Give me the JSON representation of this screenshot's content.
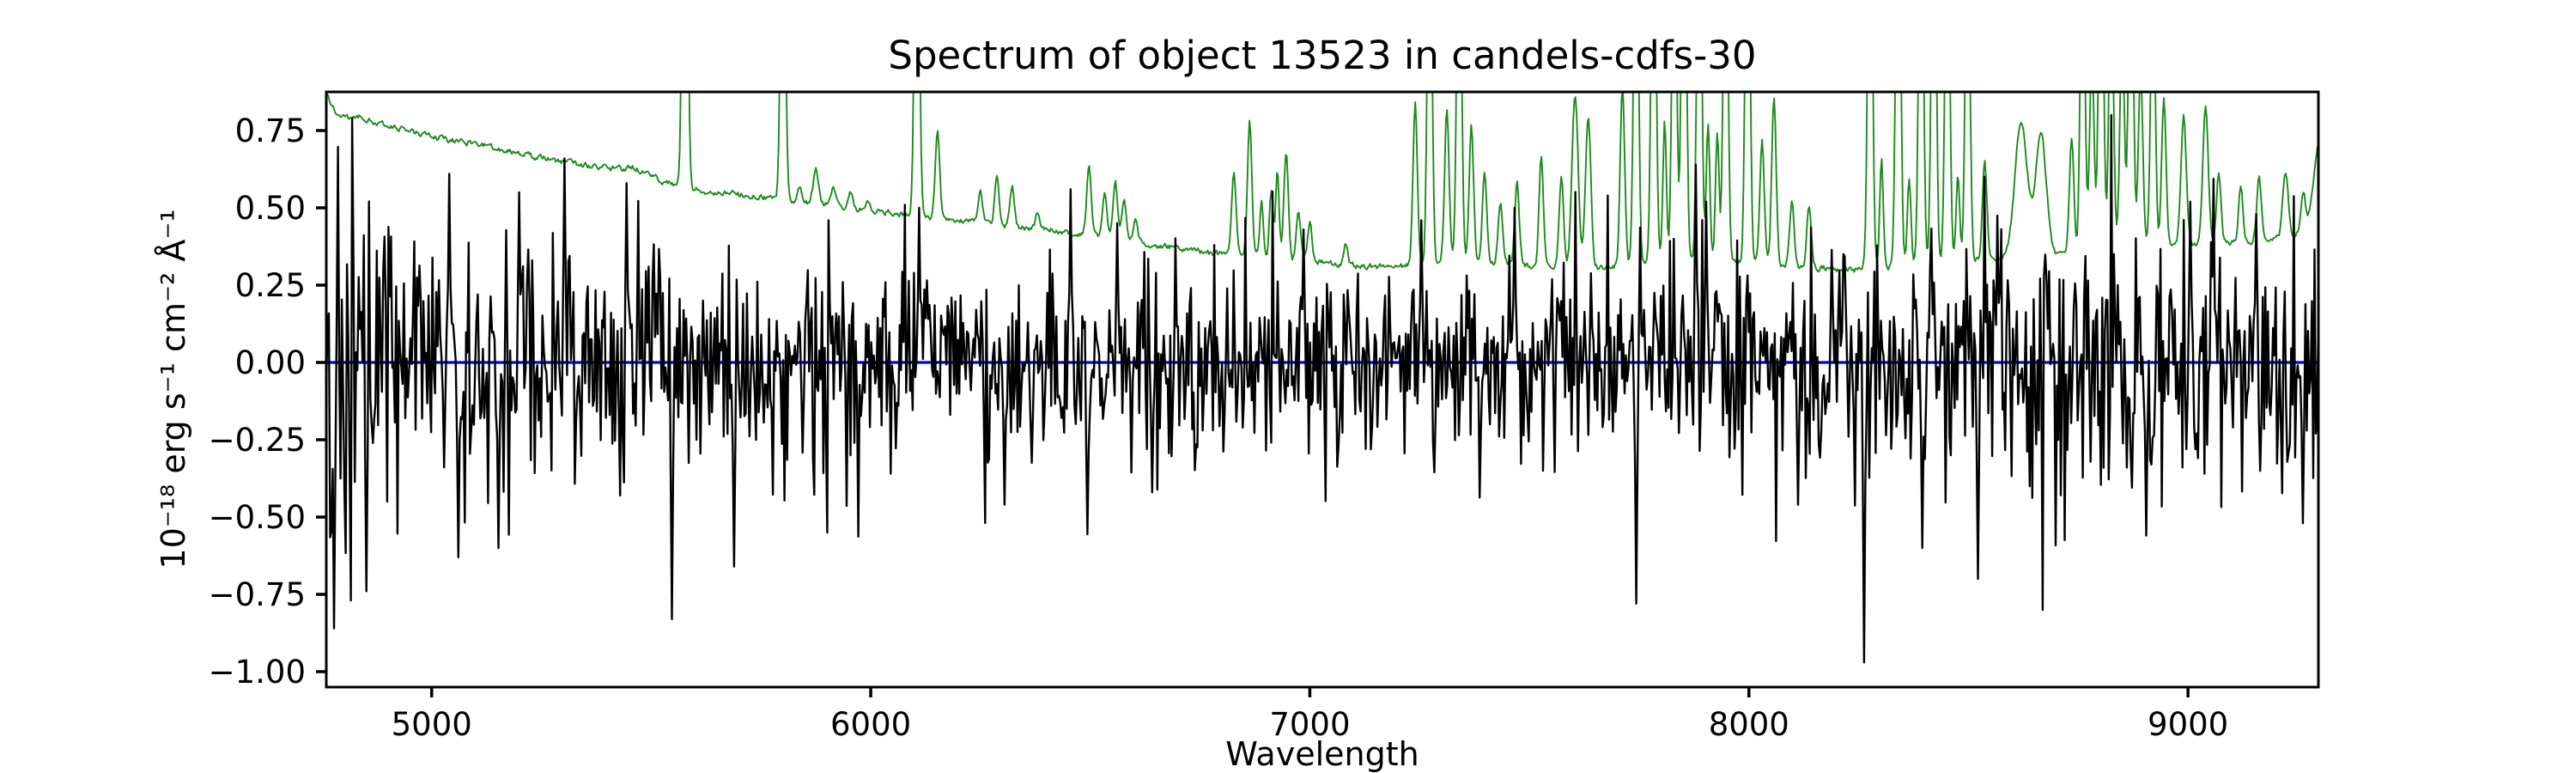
{
  "chart_data": {
    "type": "line",
    "title": "Spectrum of object 13523 in candels-cdfs-30",
    "xlabel": "Wavelength",
    "ylabel": "10⁻¹⁸ erg s⁻¹ cm⁻² Å⁻¹",
    "xlim": [
      4760,
      9297
    ],
    "ylim": [
      -1.05,
      0.875
    ],
    "xticks": [
      {
        "value": 5000,
        "label": "5000"
      },
      {
        "value": 6000,
        "label": "6000"
      },
      {
        "value": 7000,
        "label": "7000"
      },
      {
        "value": 8000,
        "label": "8000"
      },
      {
        "value": 9000,
        "label": "9000"
      }
    ],
    "yticks": [
      {
        "value": 0.75,
        "label": "0.75"
      },
      {
        "value": 0.5,
        "label": "0.50"
      },
      {
        "value": 0.25,
        "label": "0.25"
      },
      {
        "value": 0,
        "label": "0.00"
      },
      {
        "value": -0.25,
        "label": "−0.25"
      },
      {
        "value": -0.5,
        "label": "−0.50"
      },
      {
        "value": -0.75,
        "label": "−0.75"
      },
      {
        "value": -1,
        "label": "−1.00"
      }
    ],
    "grid": false,
    "legend": null,
    "background": "#ffffff",
    "frame_color": "#000000",
    "series": [
      {
        "name": "observed flux (noisy spectrum)",
        "color": "#000000",
        "line_width": 2.4,
        "mean_level": 0.0,
        "n_samples": 1540,
        "rms_profile": [
          [
            4760,
            0.3
          ],
          [
            4800,
            0.27
          ],
          [
            4900,
            0.24
          ],
          [
            5000,
            0.22
          ],
          [
            5200,
            0.21
          ],
          [
            5400,
            0.2
          ],
          [
            5600,
            0.19
          ],
          [
            5800,
            0.18
          ],
          [
            6000,
            0.17
          ],
          [
            6300,
            0.16
          ],
          [
            6600,
            0.155
          ],
          [
            7000,
            0.15
          ],
          [
            7300,
            0.155
          ],
          [
            7600,
            0.16
          ],
          [
            7800,
            0.17
          ],
          [
            8000,
            0.17
          ],
          [
            8200,
            0.18
          ],
          [
            8300,
            0.2
          ],
          [
            8500,
            0.21
          ],
          [
            8700,
            0.21
          ],
          [
            8900,
            0.215
          ],
          [
            9100,
            0.21
          ],
          [
            9297,
            0.22
          ]
        ],
        "notable_features": [
          [
            4779,
            -0.86
          ],
          [
            4815,
            -0.77
          ],
          [
            4819,
            0.79
          ],
          [
            4852,
            -0.74
          ],
          [
            5040,
            0.61
          ],
          [
            5060,
            -0.63
          ],
          [
            5152,
            -0.6
          ],
          [
            5200,
            0.55
          ],
          [
            5302,
            0.66
          ],
          [
            5445,
            0.58
          ],
          [
            5548,
            -0.83
          ],
          [
            5690,
            -0.66
          ],
          [
            5900,
            -0.55
          ],
          [
            5905,
            0.46
          ],
          [
            6110,
            0.5
          ],
          [
            6305,
            -0.46
          ],
          [
            6455,
            0.56
          ],
          [
            6560,
            0.45
          ],
          [
            6640,
            -0.42
          ],
          [
            6985,
            0.43
          ],
          [
            7255,
            0.46
          ],
          [
            7465,
            0.5
          ],
          [
            7742,
            -0.78
          ],
          [
            7878,
            0.64
          ],
          [
            7902,
            0.52
          ],
          [
            8112,
            -0.46
          ],
          [
            8262,
            -0.97
          ],
          [
            8395,
            -0.6
          ],
          [
            8522,
            -0.7
          ],
          [
            8905,
            -0.56
          ],
          [
            9005,
            0.52
          ],
          [
            9155,
            0.48
          ],
          [
            9262,
            -0.52
          ]
        ]
      },
      {
        "name": "model fit (flat zero line)",
        "color": "#0000dd",
        "line_width": 3.2,
        "y_constant": 0.0
      },
      {
        "name": "noise / 1σ error spectrum",
        "color": "#1e8a1e",
        "line_width": 1.9,
        "clipped_at_top": true,
        "baseline": [
          [
            4760,
            0.87
          ],
          [
            4772,
            0.83
          ],
          [
            4790,
            0.8
          ],
          [
            4815,
            0.79
          ],
          [
            4840,
            0.795
          ],
          [
            4870,
            0.775
          ],
          [
            4910,
            0.76
          ],
          [
            4960,
            0.745
          ],
          [
            5000,
            0.73
          ],
          [
            5060,
            0.715
          ],
          [
            5120,
            0.7
          ],
          [
            5180,
            0.68
          ],
          [
            5240,
            0.665
          ],
          [
            5300,
            0.65
          ],
          [
            5360,
            0.635
          ],
          [
            5420,
            0.625
          ],
          [
            5460,
            0.63
          ],
          [
            5500,
            0.605
          ],
          [
            5545,
            0.575
          ],
          [
            5590,
            0.56
          ],
          [
            5650,
            0.55
          ],
          [
            5720,
            0.54
          ],
          [
            5790,
            0.525
          ],
          [
            5860,
            0.515
          ],
          [
            5930,
            0.505
          ],
          [
            6000,
            0.49
          ],
          [
            6080,
            0.48
          ],
          [
            6160,
            0.465
          ],
          [
            6240,
            0.455
          ],
          [
            6320,
            0.44
          ],
          [
            6400,
            0.43
          ],
          [
            6480,
            0.415
          ],
          [
            6560,
            0.4
          ],
          [
            6640,
            0.38
          ],
          [
            6720,
            0.365
          ],
          [
            6800,
            0.35
          ],
          [
            6880,
            0.34
          ],
          [
            6960,
            0.33
          ],
          [
            7040,
            0.32
          ],
          [
            7120,
            0.31
          ],
          [
            7200,
            0.31
          ],
          [
            7280,
            0.32
          ],
          [
            7360,
            0.325
          ],
          [
            7440,
            0.32
          ],
          [
            7520,
            0.31
          ],
          [
            7600,
            0.305
          ],
          [
            7680,
            0.31
          ],
          [
            7760,
            0.32
          ],
          [
            7840,
            0.33
          ],
          [
            7920,
            0.33
          ],
          [
            8000,
            0.32
          ],
          [
            8080,
            0.315
          ],
          [
            8160,
            0.305
          ],
          [
            8240,
            0.3
          ],
          [
            8320,
            0.31
          ],
          [
            8400,
            0.32
          ],
          [
            8480,
            0.325
          ],
          [
            8560,
            0.335
          ],
          [
            8640,
            0.345
          ],
          [
            8720,
            0.35
          ],
          [
            8800,
            0.36
          ],
          [
            8880,
            0.37
          ],
          [
            8960,
            0.375
          ],
          [
            9040,
            0.385
          ],
          [
            9120,
            0.39
          ],
          [
            9200,
            0.4
          ],
          [
            9250,
            0.42
          ],
          [
            9297,
            0.5
          ]
        ],
        "sky_emission_lines": [
          [
            5577,
            2.6,
            5
          ],
          [
            5800,
            1.8,
            5
          ],
          [
            5838,
            0.56,
            5
          ],
          [
            5875,
            0.62,
            6
          ],
          [
            5915,
            0.57,
            5
          ],
          [
            5955,
            0.55,
            5
          ],
          [
            5995,
            0.52,
            5
          ],
          [
            6105,
            1.9,
            5
          ],
          [
            6152,
            0.74,
            5
          ],
          [
            6250,
            0.55,
            5
          ],
          [
            6287,
            0.6,
            5
          ],
          [
            6322,
            0.57,
            5
          ],
          [
            6380,
            0.48,
            5
          ],
          [
            6497,
            0.64,
            5
          ],
          [
            6533,
            0.56,
            5
          ],
          [
            6557,
            0.58,
            5
          ],
          [
            6577,
            0.52,
            5
          ],
          [
            6603,
            0.46,
            5
          ],
          [
            6827,
            0.62,
            5
          ],
          [
            6863,
            0.78,
            5
          ],
          [
            6890,
            0.52,
            4
          ],
          [
            6912,
            0.56,
            4
          ],
          [
            6926,
            0.62,
            4
          ],
          [
            6946,
            0.68,
            5
          ],
          [
            6974,
            0.48,
            5
          ],
          [
            7000,
            0.45,
            5
          ],
          [
            7082,
            0.38,
            5
          ],
          [
            7240,
            0.84,
            5
          ],
          [
            7273,
            1.6,
            5
          ],
          [
            7312,
            0.82,
            5
          ],
          [
            7340,
            1.7,
            5
          ],
          [
            7368,
            0.77,
            5
          ],
          [
            7398,
            0.62,
            5
          ],
          [
            7434,
            0.52,
            5
          ],
          [
            7472,
            0.58,
            5
          ],
          [
            7527,
            0.67,
            5
          ],
          [
            7573,
            0.6,
            5
          ],
          [
            7604,
            0.86,
            7
          ],
          [
            7634,
            0.8,
            6
          ],
          [
            7712,
            0.9,
            5
          ],
          [
            7743,
            1.7,
            5
          ],
          [
            7783,
            1.8,
            5
          ],
          [
            7808,
            0.78,
            4
          ],
          [
            7830,
            1.6,
            5
          ],
          [
            7852,
            1.9,
            5
          ],
          [
            7887,
            1.7,
            5
          ],
          [
            7907,
            0.78,
            4
          ],
          [
            7928,
            0.75,
            4
          ],
          [
            7947,
            1.6,
            5
          ],
          [
            7997,
            1.8,
            5
          ],
          [
            8030,
            0.72,
            5
          ],
          [
            8057,
            0.86,
            5
          ],
          [
            8098,
            0.52,
            5
          ],
          [
            8137,
            0.5,
            5
          ],
          [
            8276,
            1.8,
            5
          ],
          [
            8302,
            0.65,
            4
          ],
          [
            8340,
            1.9,
            5
          ],
          [
            8365,
            0.6,
            4
          ],
          [
            8392,
            1.7,
            5
          ],
          [
            8421,
            1.8,
            5
          ],
          [
            8452,
            1.6,
            5
          ],
          [
            8476,
            0.6,
            4
          ],
          [
            8498,
            1.5,
            5
          ],
          [
            8537,
            0.66,
            5
          ],
          [
            8620,
            0.78,
            14
          ],
          [
            8665,
            0.74,
            12
          ],
          [
            8735,
            0.72,
            5
          ],
          [
            8760,
            1.5,
            5
          ],
          [
            8781,
            1.0,
            5
          ],
          [
            8802,
            1.7,
            5
          ],
          [
            8825,
            1.3,
            5
          ],
          [
            8850,
            1.1,
            5
          ],
          [
            8870,
            1.6,
            5
          ],
          [
            8892,
            0.95,
            5
          ],
          [
            8920,
            1.3,
            5
          ],
          [
            8945,
            0.85,
            5
          ],
          [
            8990,
            0.8,
            6
          ],
          [
            9040,
            0.84,
            6
          ],
          [
            9070,
            0.62,
            5
          ],
          [
            9120,
            0.56,
            5
          ],
          [
            9162,
            0.6,
            5
          ],
          [
            9222,
            0.62,
            6
          ],
          [
            9262,
            0.56,
            5
          ],
          [
            9297,
            0.7,
            10
          ]
        ]
      }
    ]
  }
}
